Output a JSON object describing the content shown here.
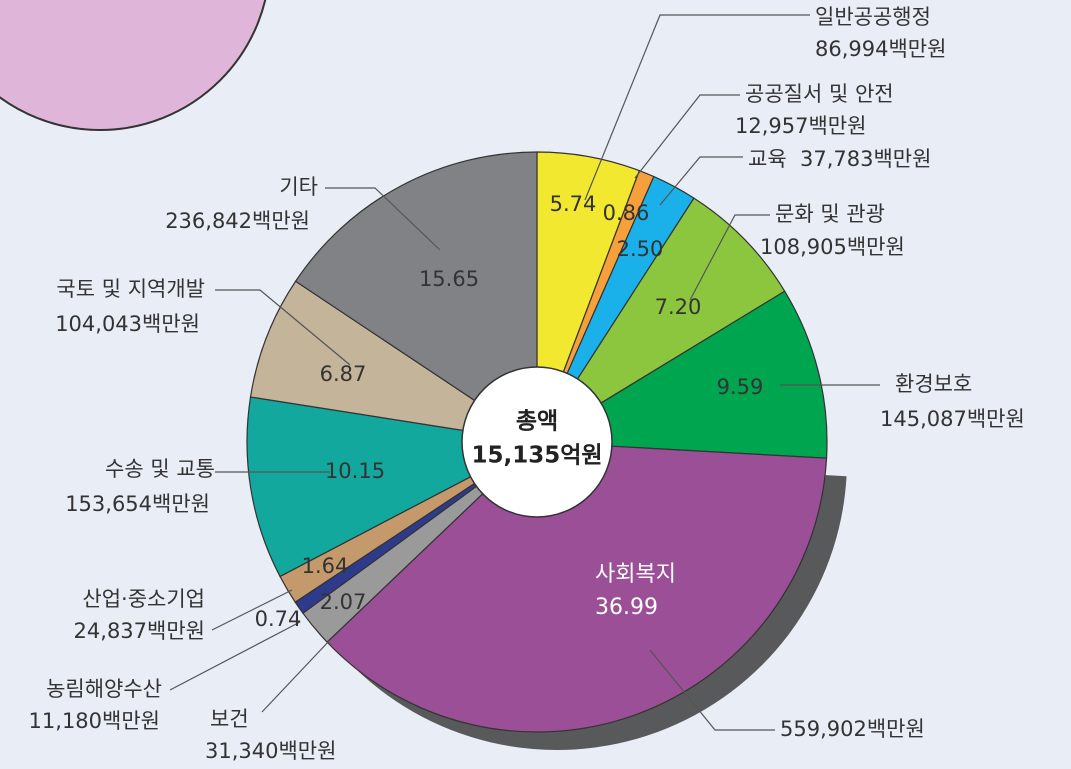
{
  "chart_data": {
    "type": "pie",
    "center_title": "총액",
    "center_total": "15,135억원",
    "categories": [
      "일반공공행정",
      "공공질서 및 안전",
      "교육",
      "문화 및 관광",
      "환경보호",
      "사회복지",
      "보건",
      "농림해양수산",
      "산업·중소기업",
      "수송 및 교통",
      "국토 및 지역개발",
      "기타"
    ],
    "values": [
      5.74,
      0.86,
      2.5,
      7.2,
      9.59,
      36.99,
      2.07,
      0.74,
      1.64,
      10.15,
      6.87,
      15.65
    ],
    "value_labels": [
      "5.74",
      "0.86",
      "2.50",
      "7.20",
      "9.59",
      "36.99",
      "2.07",
      "0.74",
      "1.64",
      "10.15",
      "6.87",
      "15.65"
    ],
    "amount_labels": [
      "86,994백만원",
      "12,957백만원",
      "37,783백만원",
      "108,905백만원",
      "145,087백만원",
      "559,902백만원",
      "31,340백만원",
      "11,180백만원",
      "24,837백만원",
      "153,654백만원",
      "104,043백만원",
      "236,842백만원"
    ],
    "colors": [
      "#f2e830",
      "#f5a03a",
      "#1ab0ea",
      "#8cc63f",
      "#00a550",
      "#9b4f96",
      "#9a9a9a",
      "#2e3a8c",
      "#c49a6c",
      "#12a89d",
      "#c4b49a",
      "#808285"
    ]
  }
}
